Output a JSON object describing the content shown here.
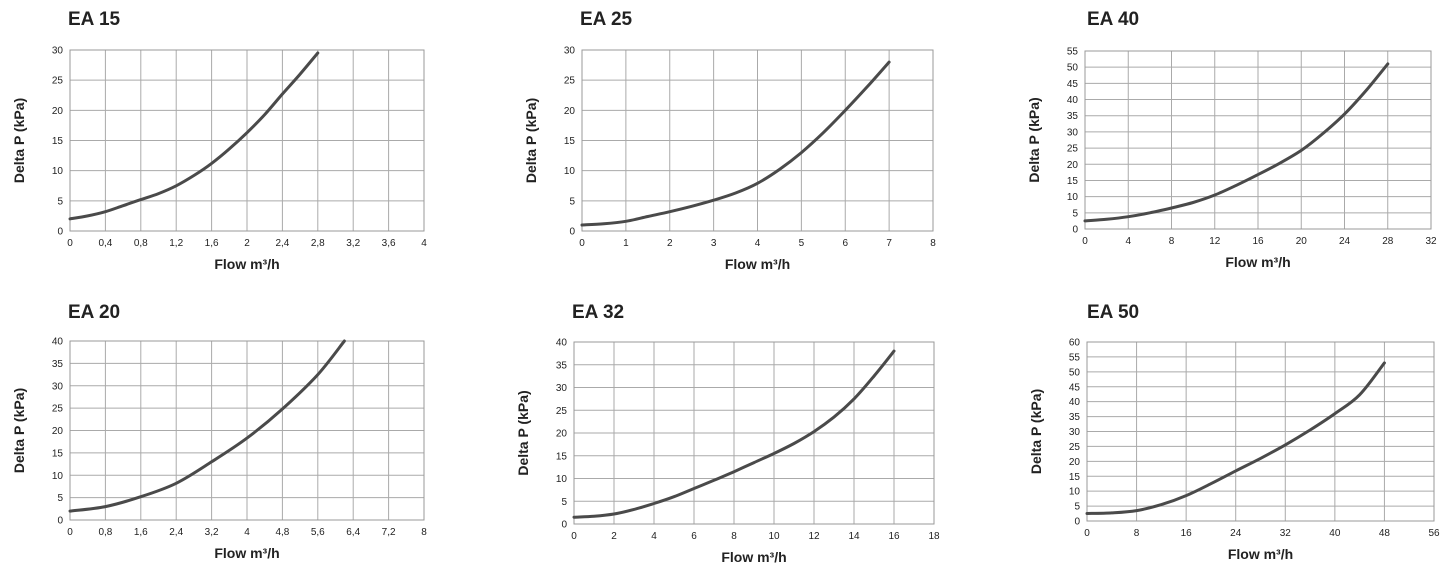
{
  "colors": {
    "curve": "#4a4a4a",
    "grid": "#aaaaaa",
    "frame": "#999999",
    "text": "#222222"
  },
  "chart_data": [
    {
      "type": "line",
      "title": "EA 15",
      "xlabel": "Flow m³/h",
      "ylabel": "Delta P (kPa)",
      "xlim": [
        0,
        4
      ],
      "ylim": [
        0,
        30
      ],
      "x_ticks": [
        "0",
        "0,4",
        "0,8",
        "1,2",
        "1,6",
        "2",
        "2,4",
        "2,8",
        "3,2",
        "3,6",
        "4"
      ],
      "y_ticks": [
        "0",
        "5",
        "10",
        "15",
        "20",
        "25",
        "30"
      ],
      "grid": true,
      "series": [
        {
          "x": [
            0,
            0.2,
            0.4,
            0.6,
            0.8,
            1.0,
            1.2,
            1.4,
            1.6,
            1.8,
            2.0,
            2.2,
            2.4,
            2.6,
            2.8
          ],
          "y": [
            2.0,
            2.5,
            3.2,
            4.2,
            5.2,
            6.2,
            7.5,
            9.2,
            11.2,
            13.6,
            16.3,
            19.3,
            22.7,
            26.0,
            29.5
          ]
        }
      ]
    },
    {
      "type": "line",
      "title": "EA 25",
      "xlabel": "Flow m³/h",
      "ylabel": "Delta P (kPa)",
      "xlim": [
        0,
        8
      ],
      "ylim": [
        0,
        30
      ],
      "x_ticks": [
        "0",
        "1",
        "2",
        "3",
        "4",
        "5",
        "6",
        "7",
        "8"
      ],
      "y_ticks": [
        "0",
        "5",
        "10",
        "15",
        "20",
        "25",
        "30"
      ],
      "grid": true,
      "series": [
        {
          "x": [
            0,
            0.5,
            1.0,
            1.5,
            2.0,
            2.5,
            3.0,
            3.5,
            4.0,
            4.5,
            5.0,
            5.5,
            6.0,
            6.5,
            7.0
          ],
          "y": [
            1.0,
            1.2,
            1.6,
            2.4,
            3.2,
            4.1,
            5.1,
            6.3,
            7.9,
            10.2,
            13.0,
            16.3,
            20.0,
            23.9,
            28.0
          ]
        }
      ]
    },
    {
      "type": "line",
      "title": "EA 40",
      "xlabel": "Flow m³/h",
      "ylabel": "Delta P (kPa)",
      "xlim": [
        0,
        32
      ],
      "ylim": [
        0,
        55
      ],
      "x_ticks": [
        "0",
        "4",
        "8",
        "12",
        "16",
        "20",
        "24",
        "28",
        "32"
      ],
      "y_ticks": [
        "0",
        "5",
        "10",
        "15",
        "20",
        "25",
        "30",
        "35",
        "40",
        "45",
        "50",
        "55"
      ],
      "grid": true,
      "series": [
        {
          "x": [
            0,
            2,
            4,
            6,
            8,
            10,
            12,
            14,
            16,
            18,
            20,
            22,
            24,
            26,
            28
          ],
          "y": [
            2.5,
            3.0,
            3.8,
            5.0,
            6.5,
            8.2,
            10.5,
            13.5,
            16.8,
            20.3,
            24.3,
            29.5,
            35.5,
            42.8,
            51.0
          ]
        }
      ]
    },
    {
      "type": "line",
      "title": "EA 20",
      "xlabel": "Flow m³/h",
      "ylabel": "Delta P (kPa)",
      "xlim": [
        0,
        8
      ],
      "ylim": [
        0,
        40
      ],
      "x_ticks": [
        "0",
        "0,8",
        "1,6",
        "2,4",
        "3,2",
        "4",
        "4,8",
        "5,6",
        "6,4",
        "7,2",
        "8"
      ],
      "y_ticks": [
        "0",
        "5",
        "10",
        "15",
        "20",
        "25",
        "30",
        "35",
        "40"
      ],
      "grid": true,
      "series": [
        {
          "x": [
            0,
            0.8,
            1.6,
            2.4,
            3.2,
            4.0,
            4.8,
            5.6,
            6.2
          ],
          "y": [
            2.0,
            3.0,
            5.2,
            8.2,
            13.0,
            18.3,
            24.8,
            32.5,
            40.0
          ]
        }
      ]
    },
    {
      "type": "line",
      "title": "EA 32",
      "xlabel": "Flow m³/h",
      "ylabel": "Delta P (kPa)",
      "xlim": [
        0,
        18
      ],
      "ylim": [
        0,
        40
      ],
      "x_ticks": [
        "0",
        "2",
        "4",
        "6",
        "8",
        "10",
        "12",
        "14",
        "16",
        "18"
      ],
      "y_ticks": [
        "0",
        "5",
        "10",
        "15",
        "20",
        "25",
        "30",
        "35",
        "40"
      ],
      "grid": true,
      "series": [
        {
          "x": [
            0,
            1,
            2,
            3,
            4,
            5,
            6,
            7,
            8,
            9,
            10,
            11,
            12,
            13,
            14,
            15,
            16
          ],
          "y": [
            1.5,
            1.7,
            2.2,
            3.2,
            4.5,
            6.0,
            7.8,
            9.6,
            11.5,
            13.5,
            15.5,
            17.7,
            20.3,
            23.5,
            27.5,
            32.5,
            38.0
          ]
        }
      ]
    },
    {
      "type": "line",
      "title": "EA 50",
      "xlabel": "Flow m³/h",
      "ylabel": "Delta P (kPa)",
      "xlim": [
        0,
        56
      ],
      "ylim": [
        0,
        60
      ],
      "x_ticks": [
        "0",
        "8",
        "16",
        "24",
        "32",
        "40",
        "48",
        "56"
      ],
      "y_ticks": [
        "0",
        "5",
        "10",
        "15",
        "20",
        "25",
        "30",
        "35",
        "40",
        "45",
        "50",
        "55",
        "60"
      ],
      "grid": true,
      "series": [
        {
          "x": [
            0,
            4,
            8,
            12,
            16,
            20,
            24,
            28,
            32,
            36,
            40,
            44,
            48
          ],
          "y": [
            2.5,
            2.7,
            3.5,
            5.5,
            8.5,
            12.5,
            16.8,
            21.0,
            25.5,
            30.5,
            36.0,
            42.3,
            53.0
          ]
        }
      ]
    }
  ]
}
